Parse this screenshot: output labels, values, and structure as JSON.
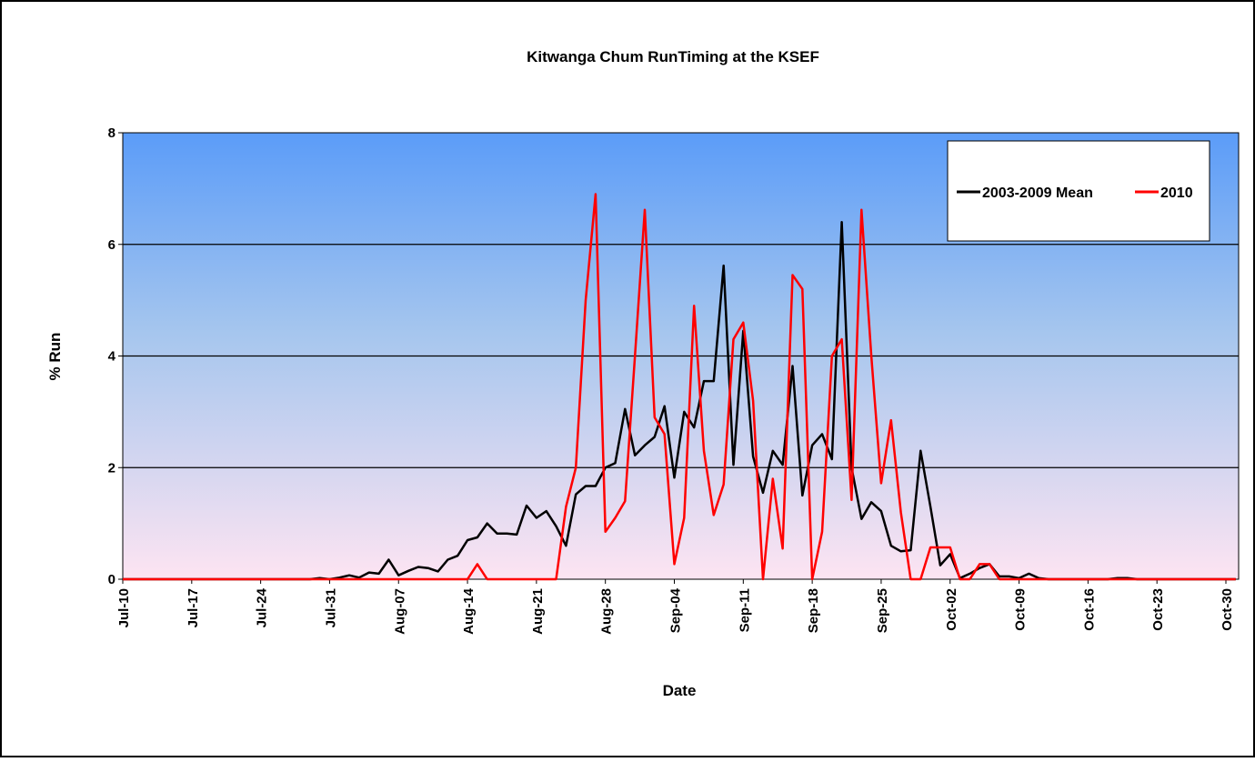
{
  "chart_data": {
    "type": "line",
    "title": "Kitwanga Chum RunTiming at the KSEF",
    "xlabel": "Date",
    "ylabel": "% Run",
    "categories": [
      "Jul-10",
      null,
      null,
      null,
      null,
      null,
      null,
      "Jul-17",
      null,
      null,
      null,
      null,
      null,
      null,
      "Jul-24",
      null,
      null,
      null,
      null,
      null,
      null,
      "Jul-31",
      null,
      null,
      null,
      null,
      null,
      null,
      "Aug-07",
      null,
      null,
      null,
      null,
      null,
      null,
      "Aug-14",
      null,
      null,
      null,
      null,
      null,
      null,
      "Aug-21",
      null,
      null,
      null,
      null,
      null,
      null,
      "Aug-28",
      null,
      null,
      null,
      null,
      null,
      null,
      "Sep-04",
      null,
      null,
      null,
      null,
      null,
      null,
      "Sep-11",
      null,
      null,
      null,
      null,
      null,
      null,
      "Sep-18",
      null,
      null,
      null,
      null,
      null,
      null,
      "Sep-25",
      null,
      null,
      null,
      null,
      null,
      null,
      "Oct-02",
      null,
      null,
      null,
      null,
      null,
      null,
      "Oct-09",
      null,
      null,
      null,
      null,
      null,
      null,
      "Oct-16",
      null,
      null,
      null,
      null,
      null,
      null,
      "Oct-23",
      null,
      null,
      null,
      null,
      null,
      null,
      "Oct-30",
      null
    ],
    "series": [
      {
        "name": "2003-2009 Mean",
        "color": "#000000",
        "values": [
          0,
          0,
          0,
          0,
          0,
          0,
          0,
          0,
          0,
          0,
          0,
          0,
          0,
          0,
          0,
          0,
          0,
          0,
          0,
          0,
          0.02,
          0,
          0.03,
          0.07,
          0.03,
          0.12,
          0.1,
          0.35,
          0.07,
          0.15,
          0.22,
          0.2,
          0.14,
          0.35,
          0.42,
          0.7,
          0.75,
          1.0,
          0.82,
          0.82,
          0.8,
          1.32,
          1.1,
          1.22,
          0.95,
          0.6,
          1.52,
          1.67,
          1.67,
          2.0,
          2.08,
          3.05,
          2.22,
          2.4,
          2.55,
          3.1,
          1.82,
          3.0,
          2.72,
          3.55,
          3.55,
          5.62,
          2.05,
          4.45,
          2.2,
          1.55,
          2.3,
          2.05,
          3.82,
          1.5,
          2.4,
          2.6,
          2.15,
          6.4,
          2.0,
          1.08,
          1.38,
          1.22,
          0.6,
          0.5,
          0.52,
          2.3,
          1.3,
          0.25,
          0.45,
          0.02,
          0.1,
          0.2,
          0.27,
          0.05,
          0.05,
          0.02,
          0.1,
          0.02,
          0,
          0,
          0,
          0,
          0,
          0,
          0,
          0.02,
          0.02,
          0,
          0,
          0,
          0,
          0,
          0,
          0,
          0,
          0,
          0,
          0
        ]
      },
      {
        "name": "2010",
        "color": "#ff0000",
        "values": [
          0,
          0,
          0,
          0,
          0,
          0,
          0,
          0,
          0,
          0,
          0,
          0,
          0,
          0,
          0,
          0,
          0,
          0,
          0,
          0,
          0,
          0,
          0,
          0,
          0,
          0,
          0,
          0,
          0,
          0,
          0,
          0,
          0,
          0,
          0,
          0,
          0.27,
          0,
          0,
          0,
          0,
          0,
          0,
          0,
          0,
          1.3,
          2.0,
          5.0,
          6.9,
          0.85,
          1.1,
          1.4,
          4.0,
          6.62,
          2.9,
          2.6,
          0.27,
          1.1,
          4.9,
          2.3,
          1.15,
          1.7,
          4.3,
          4.6,
          3.2,
          0,
          1.8,
          0.55,
          5.45,
          5.2,
          0,
          0.85,
          4.0,
          4.3,
          1.42,
          6.62,
          4.0,
          1.72,
          2.85,
          1.2,
          0,
          0,
          0.57,
          0.57,
          0.57,
          0,
          0,
          0.27,
          0.27,
          0,
          0,
          0,
          0,
          0,
          0,
          0,
          0,
          0,
          0,
          0,
          0,
          0,
          0,
          0,
          0,
          0,
          0,
          0,
          0,
          0,
          0,
          0,
          0,
          0
        ]
      }
    ],
    "ylim": [
      0,
      8
    ],
    "yticks": [
      0,
      2,
      4,
      6,
      8
    ],
    "grid": true,
    "legend": "upper right"
  }
}
